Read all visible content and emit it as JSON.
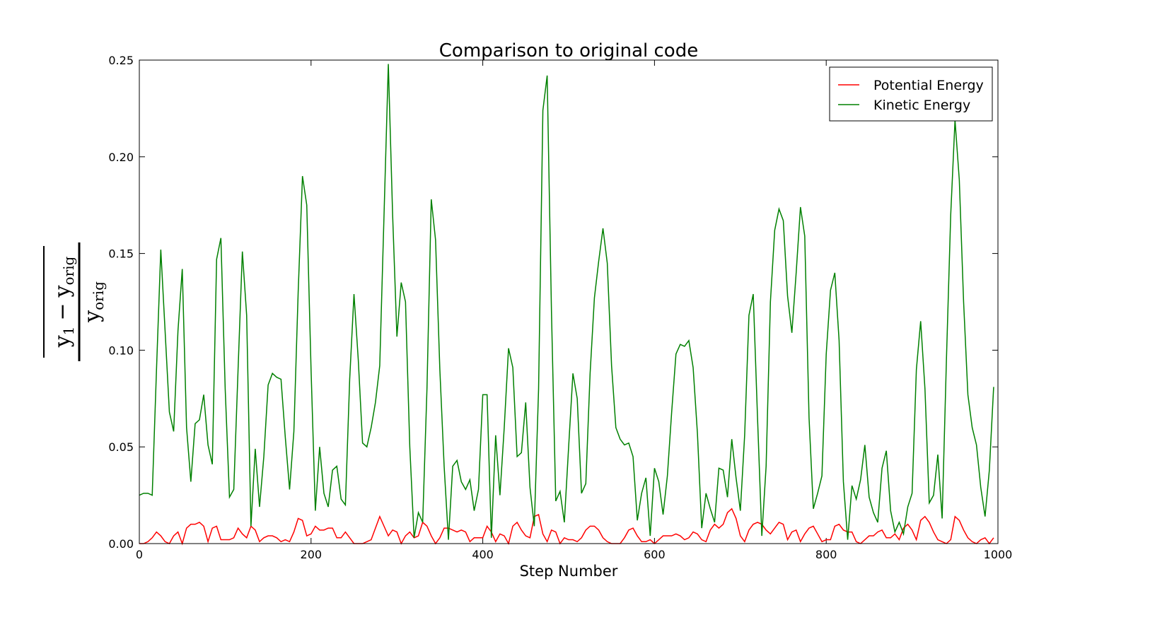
{
  "chart_data": {
    "type": "line",
    "title": "Comparison to original code",
    "xlabel": "Step Number",
    "ylabel": {
      "num_left": "y",
      "num_left_sub": "1",
      "num_op": "−",
      "num_right": "y",
      "num_right_sub": "orig",
      "den": "y",
      "den_sub": "orig"
    },
    "xlim": [
      0,
      1000
    ],
    "ylim": [
      0,
      0.25
    ],
    "xticks": [
      0,
      200,
      400,
      600,
      800,
      1000
    ],
    "yticks": [
      {
        "value": 0,
        "label": "0.00"
      },
      {
        "value": 0.05,
        "label": "0.05"
      },
      {
        "value": 0.1,
        "label": "0.10"
      },
      {
        "value": 0.15,
        "label": "0.15"
      },
      {
        "value": 0.2,
        "label": "0.20"
      },
      {
        "value": 0.25,
        "label": "0.25"
      }
    ],
    "legend": "upper right",
    "grid": false,
    "x": [
      0,
      5,
      10,
      15,
      20,
      25,
      30,
      35,
      40,
      45,
      50,
      55,
      60,
      65,
      70,
      75,
      80,
      85,
      90,
      95,
      100,
      105,
      110,
      115,
      120,
      125,
      130,
      135,
      140,
      145,
      150,
      155,
      160,
      165,
      170,
      175,
      180,
      185,
      190,
      195,
      200,
      205,
      210,
      215,
      220,
      225,
      230,
      235,
      240,
      245,
      250,
      255,
      260,
      265,
      270,
      275,
      280,
      285,
      290,
      295,
      300,
      305,
      310,
      315,
      320,
      325,
      330,
      335,
      340,
      345,
      350,
      355,
      360,
      365,
      370,
      375,
      380,
      385,
      390,
      395,
      400,
      405,
      410,
      415,
      420,
      425,
      430,
      435,
      440,
      445,
      450,
      455,
      460,
      465,
      470,
      475,
      480,
      485,
      490,
      495,
      500,
      505,
      510,
      515,
      520,
      525,
      530,
      535,
      540,
      545,
      550,
      555,
      560,
      565,
      570,
      575,
      580,
      585,
      590,
      595,
      600,
      605,
      610,
      615,
      620,
      625,
      630,
      635,
      640,
      645,
      650,
      655,
      660,
      665,
      670,
      675,
      680,
      685,
      690,
      695,
      700,
      705,
      710,
      715,
      720,
      725,
      730,
      735,
      740,
      745,
      750,
      755,
      760,
      765,
      770,
      775,
      780,
      785,
      790,
      795,
      800,
      805,
      810,
      815,
      820,
      825,
      830,
      835,
      840,
      845,
      850,
      855,
      860,
      865,
      870,
      875,
      880,
      885,
      890,
      895,
      900,
      905,
      910,
      915,
      920,
      925,
      930,
      935,
      940,
      945,
      950,
      955,
      960,
      965,
      970,
      975,
      980,
      985,
      990,
      995
    ],
    "series": [
      {
        "name": "Potential Energy",
        "color": "#ff0000",
        "values": [
          0,
          0,
          0.001,
          0.003,
          0.006,
          0.004,
          0.001,
          0.0,
          0.004,
          0.006,
          0.0,
          0.008,
          0.01,
          0.01,
          0.011,
          0.009,
          0.001,
          0.008,
          0.009,
          0.002,
          0.002,
          0.002,
          0.003,
          0.008,
          0.005,
          0.003,
          0.009,
          0.007,
          0.001,
          0.003,
          0.004,
          0.004,
          0.003,
          0.001,
          0.002,
          0.001,
          0.006,
          0.013,
          0.012,
          0.004,
          0.005,
          0.009,
          0.007,
          0.007,
          0.008,
          0.008,
          0.003,
          0.003,
          0.006,
          0.003,
          0.0,
          0.0,
          0.0,
          0.001,
          0.002,
          0.008,
          0.014,
          0.009,
          0.004,
          0.007,
          0.006,
          0.0,
          0.004,
          0.006,
          0.003,
          0.004,
          0.011,
          0.009,
          0.004,
          0.0,
          0.003,
          0.008,
          0.008,
          0.007,
          0.006,
          0.007,
          0.006,
          0.001,
          0.003,
          0.003,
          0.003,
          0.009,
          0.006,
          0.001,
          0.005,
          0.004,
          0.0,
          0.009,
          0.011,
          0.007,
          0.004,
          0.003,
          0.014,
          0.015,
          0.005,
          0.001,
          0.007,
          0.006,
          0.0,
          0.003,
          0.002,
          0.002,
          0.001,
          0.003,
          0.007,
          0.009,
          0.009,
          0.007,
          0.003,
          0.001,
          0.0,
          0.0,
          0.0,
          0.003,
          0.007,
          0.008,
          0.004,
          0.001,
          0.001,
          0.002,
          0.0,
          0.002,
          0.004,
          0.004,
          0.004,
          0.005,
          0.004,
          0.002,
          0.003,
          0.006,
          0.005,
          0.002,
          0.001,
          0.007,
          0.01,
          0.008,
          0.01,
          0.016,
          0.018,
          0.013,
          0.004,
          0.001,
          0.007,
          0.01,
          0.011,
          0.01,
          0.007,
          0.005,
          0.008,
          0.011,
          0.01,
          0.002,
          0.006,
          0.007,
          0.001,
          0.005,
          0.008,
          0.009,
          0.005,
          0.001,
          0.002,
          0.002,
          0.009,
          0.01,
          0.007,
          0.006,
          0.006,
          0.001,
          0.0,
          0.002,
          0.004,
          0.004,
          0.006,
          0.007,
          0.003,
          0.003,
          0.005,
          0.002,
          0.008,
          0.01,
          0.007,
          0.002,
          0.012,
          0.014,
          0.011,
          0.006,
          0.002,
          0.001,
          0.0,
          0.002,
          0.014,
          0.012,
          0.007,
          0.003,
          0.001,
          0.0,
          0.002,
          0.003,
          0.0,
          0.003
        ]
      },
      {
        "name": "Kinetic Energy",
        "color": "#008000",
        "values": [
          0.025,
          0.026,
          0.026,
          0.025,
          0.09,
          0.152,
          0.11,
          0.068,
          0.058,
          0.11,
          0.142,
          0.06,
          0.032,
          0.062,
          0.064,
          0.077,
          0.051,
          0.041,
          0.147,
          0.158,
          0.08,
          0.024,
          0.028,
          0.09,
          0.151,
          0.118,
          0.009,
          0.049,
          0.019,
          0.045,
          0.082,
          0.088,
          0.086,
          0.085,
          0.055,
          0.028,
          0.058,
          0.13,
          0.19,
          0.175,
          0.09,
          0.017,
          0.05,
          0.026,
          0.019,
          0.038,
          0.04,
          0.023,
          0.02,
          0.085,
          0.129,
          0.095,
          0.052,
          0.05,
          0.06,
          0.073,
          0.092,
          0.17,
          0.248,
          0.17,
          0.107,
          0.135,
          0.125,
          0.05,
          0.003,
          0.016,
          0.011,
          0.08,
          0.178,
          0.157,
          0.09,
          0.04,
          0.002,
          0.04,
          0.043,
          0.032,
          0.028,
          0.033,
          0.017,
          0.028,
          0.077,
          0.077,
          0.003,
          0.056,
          0.025,
          0.06,
          0.101,
          0.091,
          0.045,
          0.047,
          0.073,
          0.029,
          0.009,
          0.08,
          0.224,
          0.242,
          0.12,
          0.022,
          0.027,
          0.011,
          0.05,
          0.088,
          0.075,
          0.026,
          0.031,
          0.088,
          0.127,
          0.146,
          0.163,
          0.145,
          0.092,
          0.06,
          0.054,
          0.051,
          0.052,
          0.045,
          0.012,
          0.026,
          0.034,
          0.004,
          0.039,
          0.032,
          0.015,
          0.035,
          0.068,
          0.098,
          0.103,
          0.102,
          0.105,
          0.091,
          0.057,
          0.008,
          0.026,
          0.018,
          0.011,
          0.039,
          0.038,
          0.024,
          0.054,
          0.034,
          0.017,
          0.056,
          0.118,
          0.129,
          0.065,
          0.004,
          0.04,
          0.125,
          0.162,
          0.173,
          0.167,
          0.128,
          0.109,
          0.14,
          0.174,
          0.159,
          0.065,
          0.018,
          0.026,
          0.035,
          0.098,
          0.131,
          0.14,
          0.105,
          0.032,
          0.002,
          0.03,
          0.023,
          0.033,
          0.051,
          0.024,
          0.016,
          0.011,
          0.039,
          0.048,
          0.017,
          0.006,
          0.011,
          0.005,
          0.019,
          0.026,
          0.09,
          0.115,
          0.08,
          0.021,
          0.025,
          0.046,
          0.013,
          0.095,
          0.17,
          0.219,
          0.188,
          0.125,
          0.077,
          0.06,
          0.051,
          0.029,
          0.014,
          0.038,
          0.081
        ]
      }
    ]
  }
}
